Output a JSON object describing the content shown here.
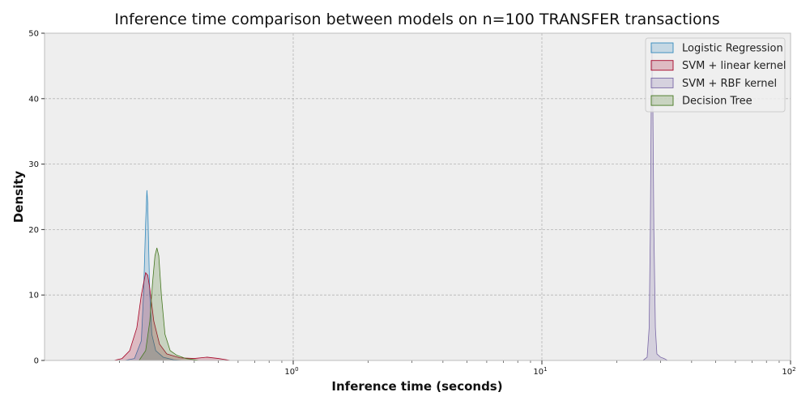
{
  "chart_data": {
    "type": "area",
    "title": "Inference time comparison between models on n=100 TRANSFER transactions",
    "xlabel": "Inference time (seconds)",
    "ylabel": "Density",
    "xscale": "log",
    "xlim": [
      0.1,
      100
    ],
    "ylim": [
      0,
      50
    ],
    "grid": true,
    "legend_position": "top-right",
    "x_ticks": [
      {
        "base": "10",
        "exp": "0",
        "value": 1
      },
      {
        "base": "10",
        "exp": "1",
        "value": 10
      },
      {
        "base": "10",
        "exp": "2",
        "value": 100
      }
    ],
    "y_ticks": [
      "0",
      "10",
      "20",
      "30",
      "40",
      "50"
    ],
    "series": [
      {
        "name": "Logistic Regression",
        "color": "#348ABD",
        "x": [
          0.21,
          0.23,
          0.245,
          0.25,
          0.255,
          0.258,
          0.26,
          0.262,
          0.265,
          0.27,
          0.28,
          0.3,
          0.33,
          0.36
        ],
        "y": [
          0,
          0.3,
          3,
          10,
          21,
          26,
          24,
          18,
          10,
          4,
          1.5,
          0.5,
          0.1,
          0
        ]
      },
      {
        "name": "SVM + linear kernel",
        "color": "#A60628",
        "x": [
          0.19,
          0.205,
          0.22,
          0.235,
          0.245,
          0.255,
          0.26,
          0.265,
          0.275,
          0.29,
          0.31,
          0.35,
          0.4,
          0.45,
          0.5,
          0.56
        ],
        "y": [
          0,
          0.3,
          1.5,
          5,
          10,
          13.4,
          13,
          11,
          6,
          2.5,
          1,
          0.4,
          0.3,
          0.5,
          0.3,
          0
        ]
      },
      {
        "name": "SVM + RBF kernel",
        "color": "#7A68A6",
        "x": [
          25.5,
          26.5,
          27,
          27.3,
          27.5,
          27.7,
          27.9,
          28.2,
          28.6,
          29,
          30,
          31,
          32
        ],
        "y": [
          0,
          0.5,
          5,
          20,
          38,
          48,
          42,
          20,
          5,
          1,
          0.5,
          0.3,
          0
        ]
      },
      {
        "name": "Decision Tree",
        "color": "#467821",
        "x": [
          0.24,
          0.255,
          0.265,
          0.272,
          0.278,
          0.283,
          0.288,
          0.295,
          0.305,
          0.32,
          0.34,
          0.37,
          0.42
        ],
        "y": [
          0,
          1.5,
          6,
          12,
          16,
          17.2,
          16,
          10,
          4,
          1.5,
          0.8,
          0.3,
          0
        ]
      }
    ]
  }
}
